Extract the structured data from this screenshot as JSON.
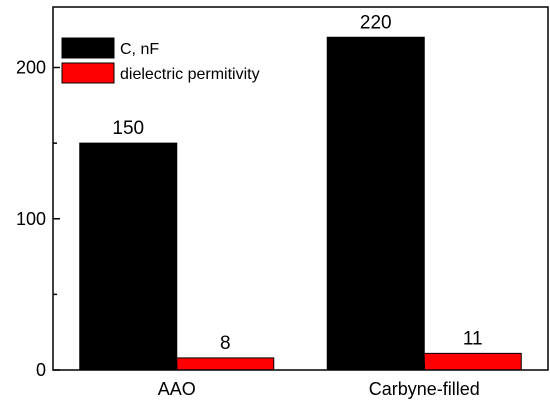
{
  "chart_data": {
    "type": "bar",
    "categories": [
      "AAO",
      "Carbyne-filled"
    ],
    "series": [
      {
        "name": "C, nF",
        "values": [
          150,
          220
        ],
        "color": "#000000"
      },
      {
        "name": "dielectric permitivity",
        "values": [
          8,
          11
        ],
        "color": "#ff0000"
      }
    ],
    "title": "",
    "xlabel": "",
    "ylabel": "",
    "ylim": [
      0,
      240
    ],
    "yticks": [
      0,
      100,
      200
    ],
    "y_minor_step": 50,
    "grid": false,
    "legend_position": "top-left",
    "data_labels": [
      "150",
      "8",
      "220",
      "11"
    ]
  }
}
